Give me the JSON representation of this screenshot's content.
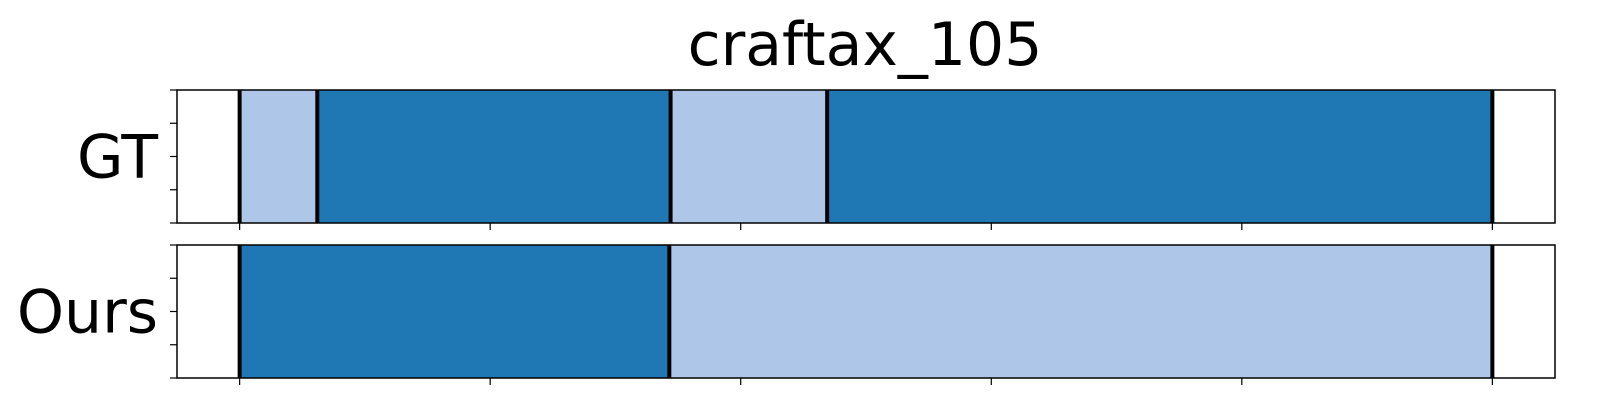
{
  "chart_data": {
    "type": "segmentation-timeline",
    "title": "craftax_105",
    "xlim": [
      0,
      1100
    ],
    "xticks": [
      50,
      250,
      450,
      650,
      850,
      1050
    ],
    "colors": {
      "light": "#aec7e8",
      "dark": "#1f77b4"
    },
    "rows": [
      {
        "label": "GT",
        "segments": [
          {
            "start": 50,
            "end": 112,
            "class": "light"
          },
          {
            "start": 112,
            "end": 394,
            "class": "dark"
          },
          {
            "start": 394,
            "end": 519,
            "class": "light"
          },
          {
            "start": 519,
            "end": 1050,
            "class": "dark"
          }
        ],
        "boundaries": [
          50,
          112,
          394,
          519,
          1050
        ]
      },
      {
        "label": "Ours",
        "segments": [
          {
            "start": 50,
            "end": 393,
            "class": "dark"
          },
          {
            "start": 393,
            "end": 1050,
            "class": "light"
          }
        ],
        "boundaries": [
          50,
          393,
          1050
        ]
      }
    ]
  }
}
